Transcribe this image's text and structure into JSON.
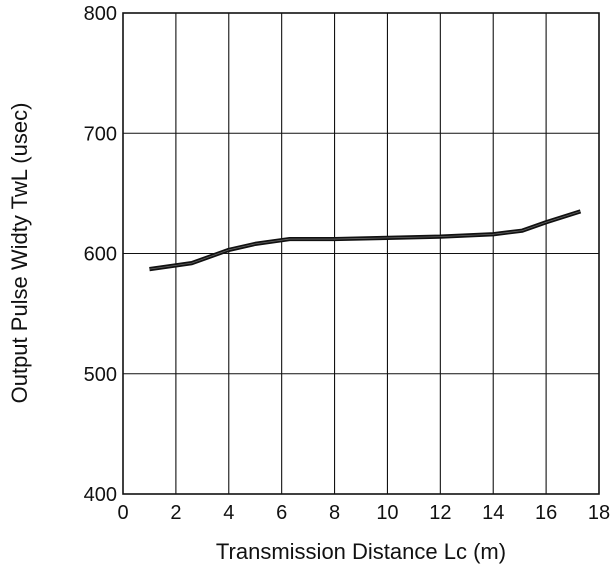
{
  "chart_data": {
    "type": "line",
    "title": "",
    "xlabel": "Transmission Distance Lc (m)",
    "ylabel": "Output Pulse Widty TwL (usec)",
    "xlim": [
      0,
      18
    ],
    "ylim": [
      400,
      800
    ],
    "x_ticks": [
      0,
      2,
      4,
      6,
      8,
      10,
      12,
      14,
      16,
      18
    ],
    "y_ticks": [
      400,
      500,
      600,
      700,
      800
    ],
    "grid": true,
    "legend": "none",
    "series": [
      {
        "x": [
          1.0,
          2.6,
          4.0,
          5.0,
          6.3,
          8.0,
          10.0,
          12.0,
          14.0,
          15.1,
          16.0,
          17.3
        ],
        "values": [
          587,
          592,
          603,
          608,
          612,
          612,
          613,
          614,
          616,
          619,
          626,
          635
        ],
        "color": "#111111"
      }
    ]
  }
}
